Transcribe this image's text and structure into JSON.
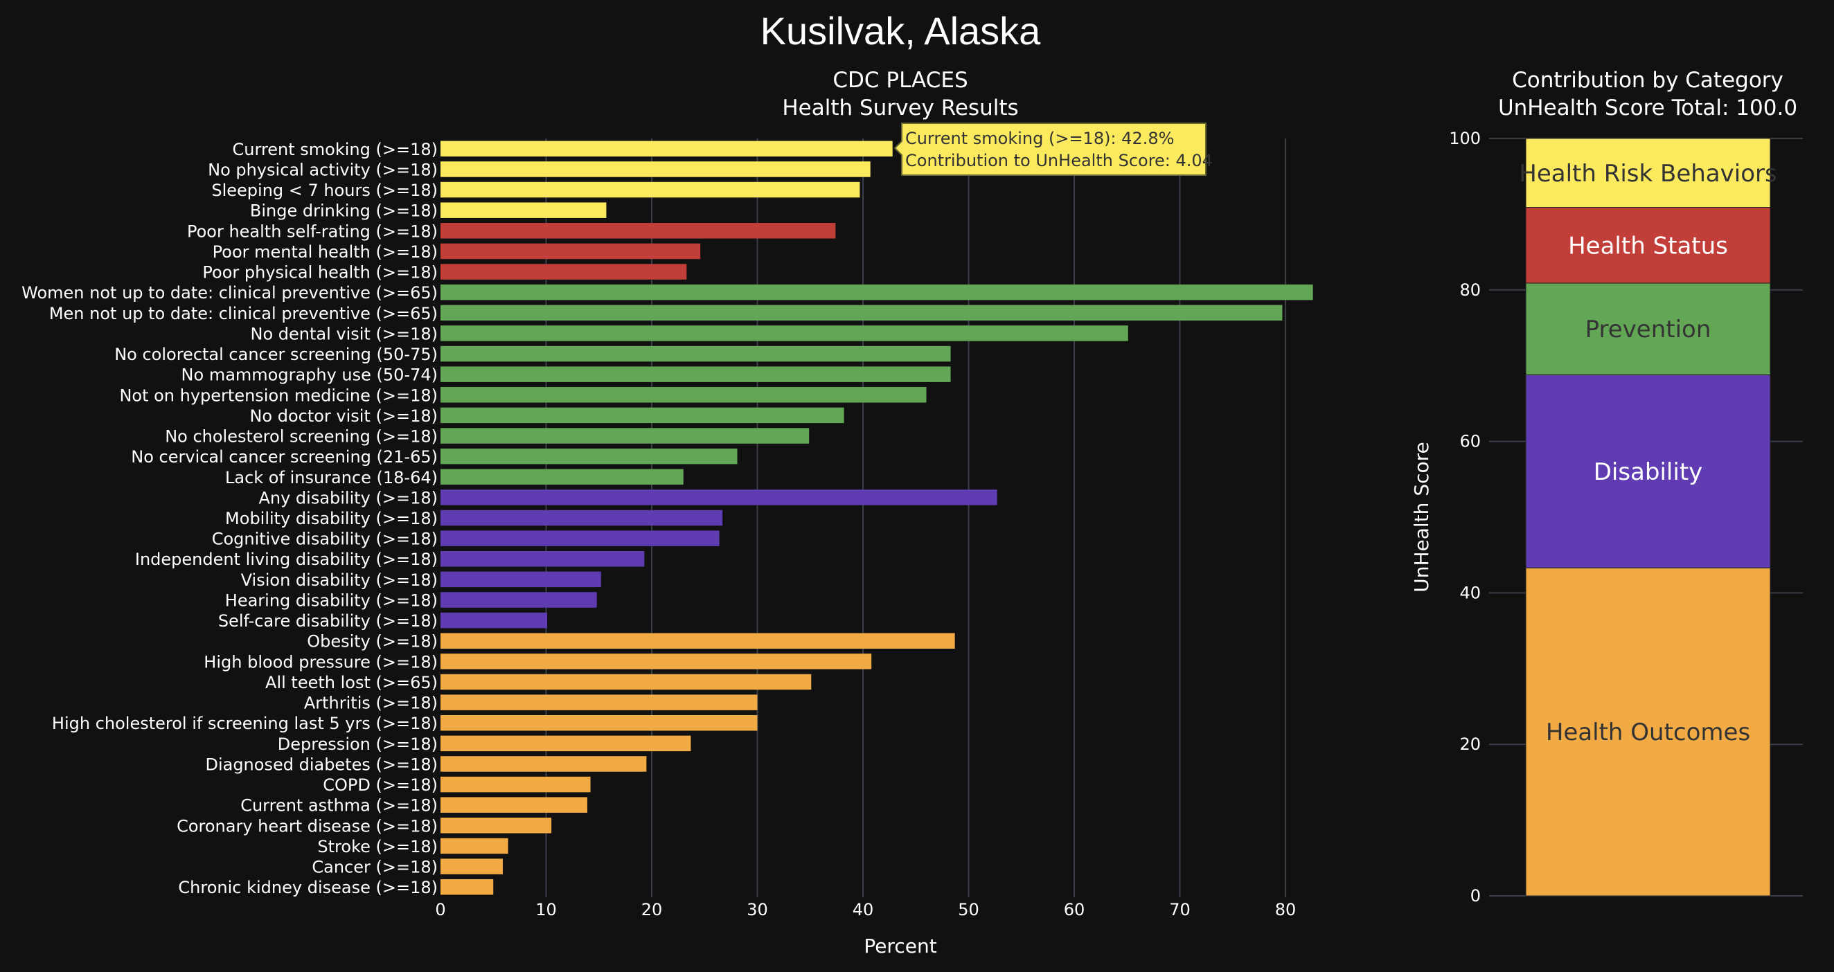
{
  "page": {
    "title": "Kusilvak, Alaska"
  },
  "colors": {
    "background": "#111111",
    "grid": "#3a3f4a",
    "Health Risk Behaviors": "#fbe95e",
    "Health Status": "#c13f38",
    "Prevention": "#63a756",
    "Disability": "#5f3cb2",
    "Health Outcomes": "#f2aa45"
  },
  "tooltip": {
    "line1": "Current smoking (>=18): 42.8%",
    "line2": "Contribution to UnHealth Score: 4.04"
  },
  "chart_data": [
    {
      "type": "bar",
      "orientation": "horizontal",
      "title": "CDC PLACES",
      "subtitle": "Health Survey Results",
      "xlabel": "Percent",
      "ylabel": "",
      "xlim": [
        0,
        90
      ],
      "xticks": [
        0,
        10,
        20,
        30,
        40,
        50,
        60,
        70,
        80
      ],
      "grid": true,
      "bars": [
        {
          "label": "Current smoking (>=18)",
          "value": 42.8,
          "category": "Health Risk Behaviors"
        },
        {
          "label": "No physical activity (>=18)",
          "value": 40.7,
          "category": "Health Risk Behaviors"
        },
        {
          "label": "Sleeping < 7 hours (>=18)",
          "value": 39.7,
          "category": "Health Risk Behaviors"
        },
        {
          "label": "Binge drinking (>=18)",
          "value": 15.7,
          "category": "Health Risk Behaviors"
        },
        {
          "label": "Poor health self-rating (>=18)",
          "value": 37.4,
          "category": "Health Status"
        },
        {
          "label": "Poor mental health (>=18)",
          "value": 24.6,
          "category": "Health Status"
        },
        {
          "label": "Poor physical health (>=18)",
          "value": 23.3,
          "category": "Health Status"
        },
        {
          "label": "Women not up to date: clinical preventive (>=65)",
          "value": 82.6,
          "category": "Prevention"
        },
        {
          "label": "Men not up to date: clinical preventive (>=65)",
          "value": 79.7,
          "category": "Prevention"
        },
        {
          "label": "No dental visit (>=18)",
          "value": 65.1,
          "category": "Prevention"
        },
        {
          "label": "No colorectal cancer screening (50-75)",
          "value": 48.3,
          "category": "Prevention"
        },
        {
          "label": "No mammography use (50-74)",
          "value": 48.3,
          "category": "Prevention"
        },
        {
          "label": "Not on hypertension medicine (>=18)",
          "value": 46.0,
          "category": "Prevention"
        },
        {
          "label": "No doctor visit (>=18)",
          "value": 38.2,
          "category": "Prevention"
        },
        {
          "label": "No cholesterol screening (>=18)",
          "value": 34.9,
          "category": "Prevention"
        },
        {
          "label": "No cervical cancer screening (21-65)",
          "value": 28.1,
          "category": "Prevention"
        },
        {
          "label": "Lack of insurance (18-64)",
          "value": 23.0,
          "category": "Prevention"
        },
        {
          "label": "Any disability (>=18)",
          "value": 52.7,
          "category": "Disability"
        },
        {
          "label": "Mobility disability (>=18)",
          "value": 26.7,
          "category": "Disability"
        },
        {
          "label": "Cognitive disability (>=18)",
          "value": 26.4,
          "category": "Disability"
        },
        {
          "label": "Independent living disability (>=18)",
          "value": 19.3,
          "category": "Disability"
        },
        {
          "label": "Vision disability (>=18)",
          "value": 15.2,
          "category": "Disability"
        },
        {
          "label": "Hearing disability (>=18)",
          "value": 14.8,
          "category": "Disability"
        },
        {
          "label": "Self-care disability (>=18)",
          "value": 10.1,
          "category": "Disability"
        },
        {
          "label": "Obesity (>=18)",
          "value": 48.7,
          "category": "Health Outcomes"
        },
        {
          "label": "High blood pressure (>=18)",
          "value": 40.8,
          "category": "Health Outcomes"
        },
        {
          "label": "All teeth lost (>=65)",
          "value": 35.1,
          "category": "Health Outcomes"
        },
        {
          "label": "Arthritis (>=18)",
          "value": 30.0,
          "category": "Health Outcomes"
        },
        {
          "label": "High cholesterol if screening last 5 yrs (>=18)",
          "value": 30.0,
          "category": "Health Outcomes"
        },
        {
          "label": "Depression (>=18)",
          "value": 23.7,
          "category": "Health Outcomes"
        },
        {
          "label": "Diagnosed diabetes (>=18)",
          "value": 19.5,
          "category": "Health Outcomes"
        },
        {
          "label": "COPD (>=18)",
          "value": 14.2,
          "category": "Health Outcomes"
        },
        {
          "label": "Current asthma (>=18)",
          "value": 13.9,
          "category": "Health Outcomes"
        },
        {
          "label": "Coronary heart disease (>=18)",
          "value": 10.5,
          "category": "Health Outcomes"
        },
        {
          "label": "Stroke (>=18)",
          "value": 6.4,
          "category": "Health Outcomes"
        },
        {
          "label": "Cancer (>=18)",
          "value": 5.9,
          "category": "Health Outcomes"
        },
        {
          "label": "Chronic kidney disease (>=18)",
          "value": 5.0,
          "category": "Health Outcomes"
        }
      ]
    },
    {
      "type": "bar",
      "stacked": true,
      "title": "Contribution by Category",
      "subtitle": "UnHealth Score Total: 100.0",
      "ylabel": "UnHealth Score",
      "ylim": [
        0,
        100
      ],
      "yticks": [
        0,
        20,
        40,
        60,
        80,
        100
      ],
      "grid": true,
      "segments": [
        {
          "name": "Health Outcomes",
          "value": 43.3
        },
        {
          "name": "Disability",
          "value": 25.5
        },
        {
          "name": "Prevention",
          "value": 12.1
        },
        {
          "name": "Health Status",
          "value": 10.0
        },
        {
          "name": "Health Risk Behaviors",
          "value": 9.1
        }
      ],
      "segment_label_colors": {
        "Health Outcomes": "#333333",
        "Disability": "#ffffff",
        "Prevention": "#333333",
        "Health Status": "#ffffff",
        "Health Risk Behaviors": "#333333"
      }
    }
  ]
}
